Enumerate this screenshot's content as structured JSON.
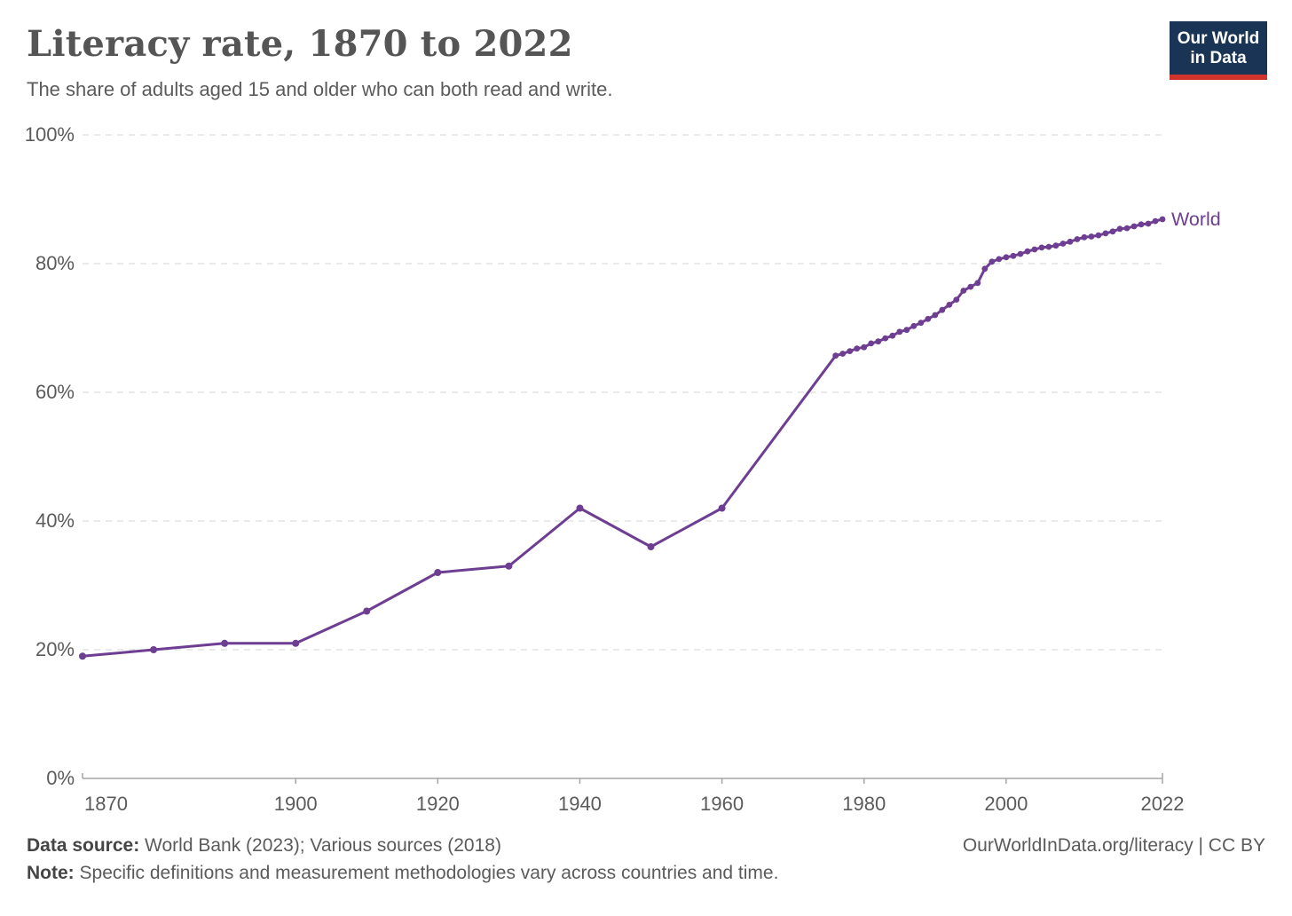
{
  "header": {
    "title": "Literacy rate, 1870 to 2022",
    "subtitle": "The share of adults aged 15 and older who can both read and write."
  },
  "logo": {
    "line1": "Our World",
    "line2": "in Data",
    "bg_color": "#1a3455",
    "accent_color": "#d0342c"
  },
  "chart_data": {
    "type": "line",
    "title": "Literacy rate, 1870 to 2022",
    "subtitle": "The share of adults aged 15 and older who can both read and write.",
    "grid": "horizontal-dashed",
    "legend_position": "end-of-line",
    "xlim": [
      1870,
      2022
    ],
    "ylim": [
      0,
      100
    ],
    "x_ticks": [
      1870,
      1900,
      1920,
      1940,
      1960,
      1980,
      2000,
      2022
    ],
    "y_ticks": [
      0,
      20,
      40,
      60,
      80,
      100
    ],
    "y_tick_suffix": "%",
    "axis_color": "#a5a5a5",
    "grid_color": "#d6d6d6",
    "tick_label_color": "#5b5b5b",
    "series": [
      {
        "name": "World",
        "color": "#6d3e91",
        "points": [
          [
            1870,
            19
          ],
          [
            1880,
            20
          ],
          [
            1890,
            21
          ],
          [
            1900,
            21
          ],
          [
            1910,
            26
          ],
          [
            1920,
            32
          ],
          [
            1930,
            33
          ],
          [
            1940,
            42
          ],
          [
            1950,
            36
          ],
          [
            1960,
            42
          ],
          [
            1976,
            65.7
          ],
          [
            1977,
            66.0
          ],
          [
            1978,
            66.4
          ],
          [
            1979,
            66.8
          ],
          [
            1980,
            67.0
          ],
          [
            1981,
            67.6
          ],
          [
            1982,
            67.9
          ],
          [
            1983,
            68.4
          ],
          [
            1984,
            68.8
          ],
          [
            1985,
            69.4
          ],
          [
            1986,
            69.7
          ],
          [
            1987,
            70.3
          ],
          [
            1988,
            70.8
          ],
          [
            1989,
            71.4
          ],
          [
            1990,
            72.0
          ],
          [
            1991,
            72.8
          ],
          [
            1992,
            73.6
          ],
          [
            1993,
            74.4
          ],
          [
            1994,
            75.8
          ],
          [
            1995,
            76.4
          ],
          [
            1996,
            77.0
          ],
          [
            1997,
            79.2
          ],
          [
            1998,
            80.3
          ],
          [
            1999,
            80.7
          ],
          [
            2000,
            81.0
          ],
          [
            2001,
            81.2
          ],
          [
            2002,
            81.5
          ],
          [
            2003,
            81.9
          ],
          [
            2004,
            82.2
          ],
          [
            2005,
            82.5
          ],
          [
            2006,
            82.6
          ],
          [
            2007,
            82.8
          ],
          [
            2008,
            83.1
          ],
          [
            2009,
            83.4
          ],
          [
            2010,
            83.8
          ],
          [
            2011,
            84.1
          ],
          [
            2012,
            84.2
          ],
          [
            2013,
            84.4
          ],
          [
            2014,
            84.7
          ],
          [
            2015,
            85.0
          ],
          [
            2016,
            85.4
          ],
          [
            2017,
            85.5
          ],
          [
            2018,
            85.8
          ],
          [
            2019,
            86.1
          ],
          [
            2020,
            86.2
          ],
          [
            2021,
            86.6
          ],
          [
            2022,
            86.9
          ]
        ]
      }
    ]
  },
  "footer": {
    "source_label": "Data source:",
    "source_text": " World Bank (2023); Various sources (2018)",
    "note_label": "Note:",
    "note_text": " Specific definitions and measurement methodologies vary across countries and time.",
    "rights": "OurWorldInData.org/literacy | CC BY"
  }
}
